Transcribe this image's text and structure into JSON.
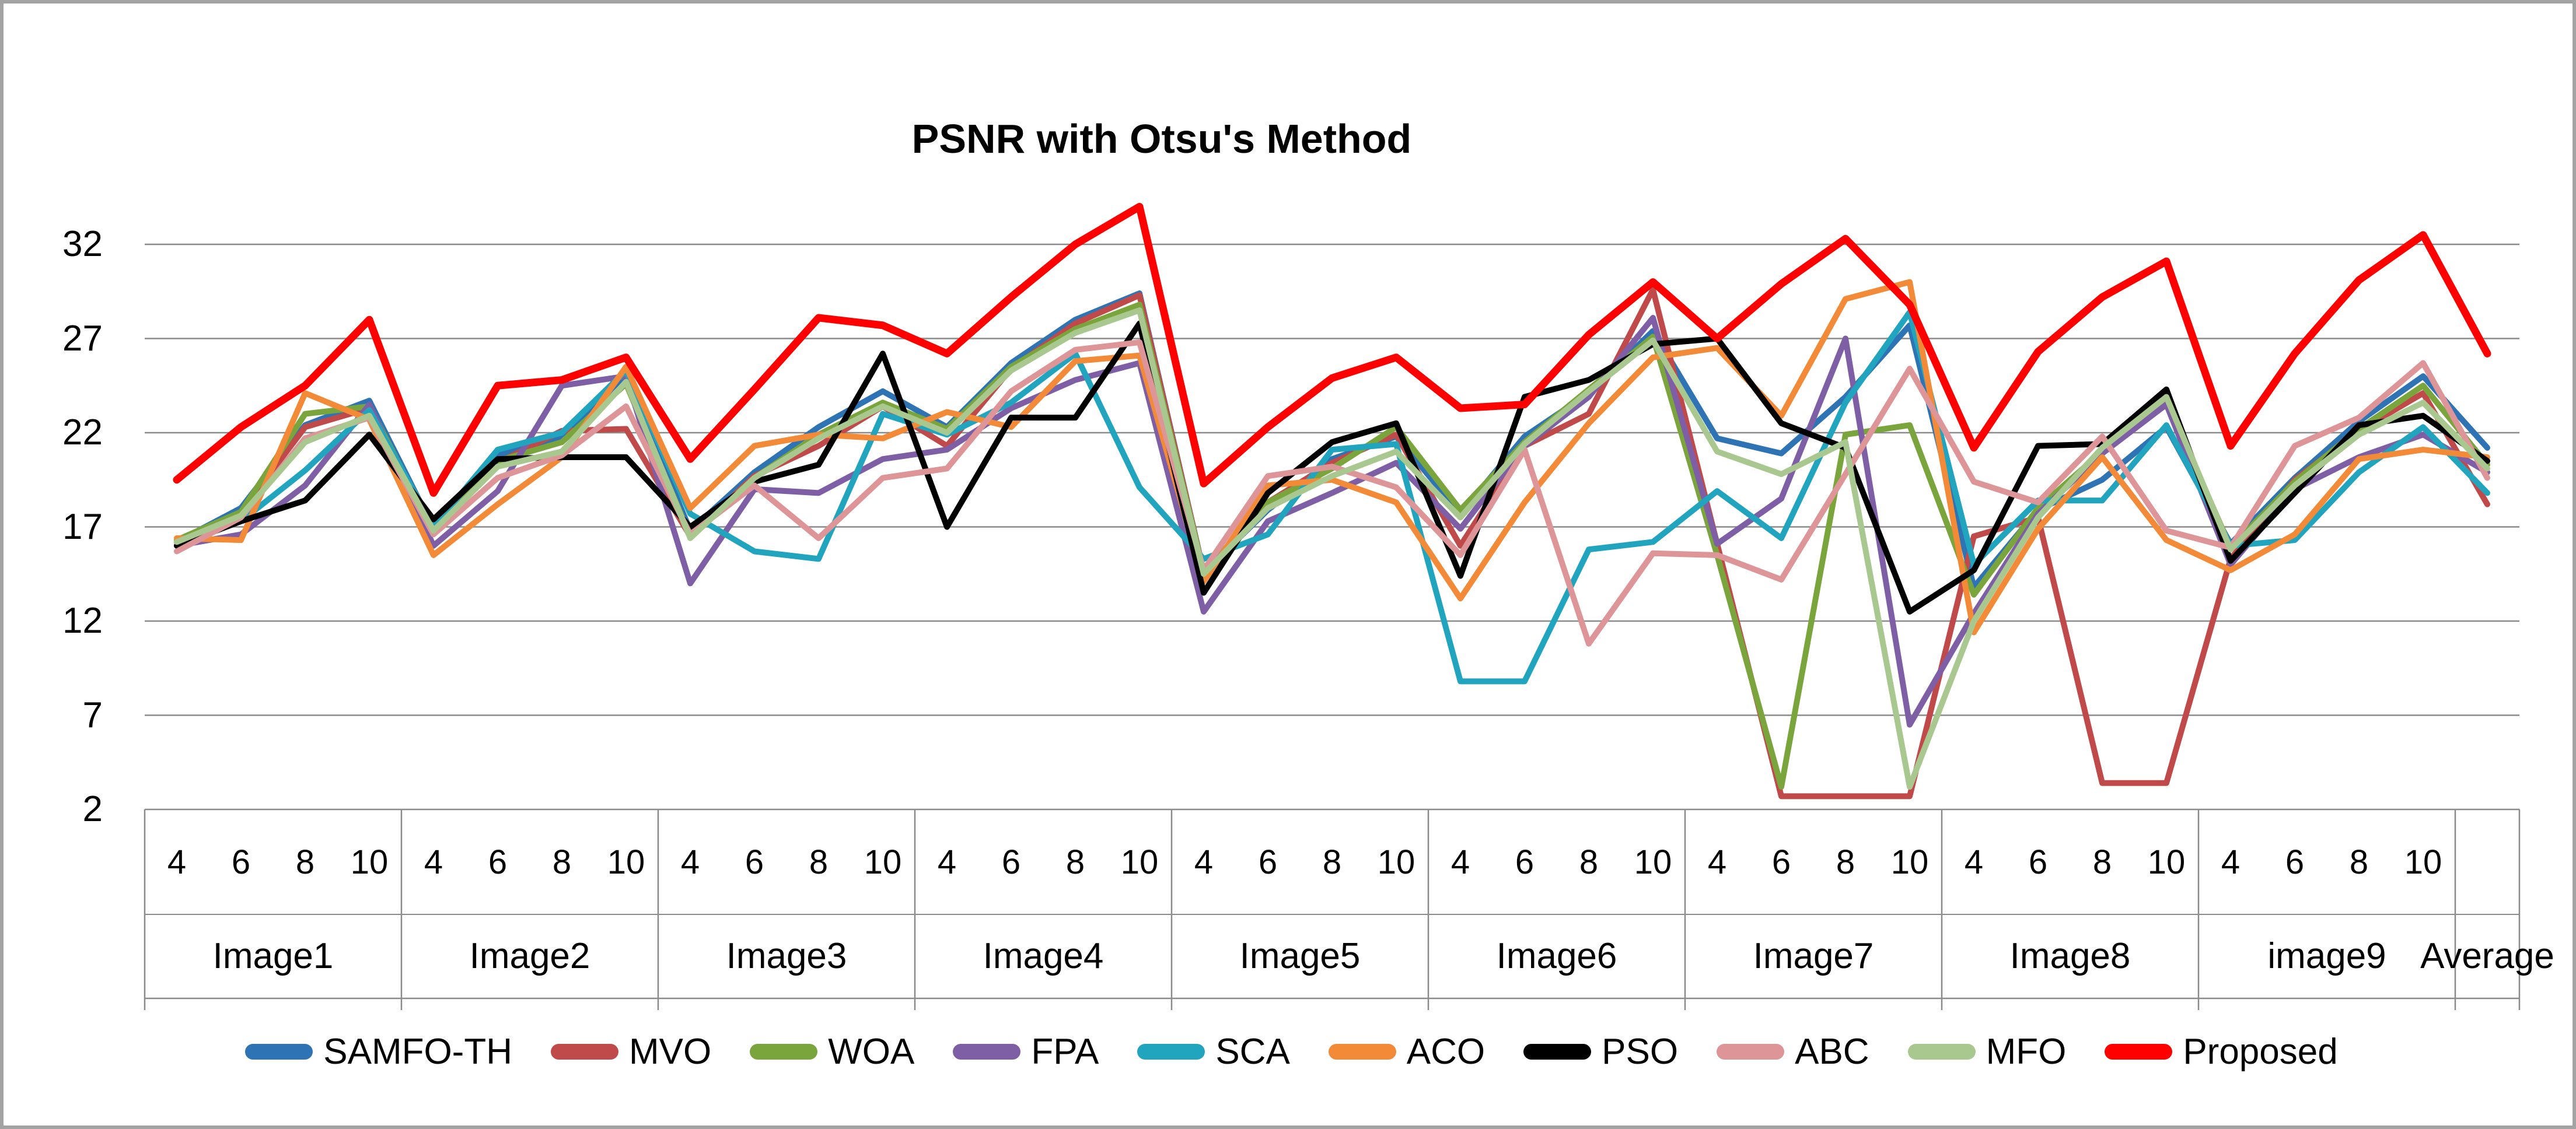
{
  "title": "PSNR with Otsu's Method",
  "chart_data": {
    "type": "line",
    "title": "PSNR with Otsu's Method",
    "xlabel": "",
    "ylabel": "",
    "ylim": [
      2,
      35
    ],
    "grid": true,
    "legend_position": "bottom",
    "y_ticks": [
      32,
      27,
      22,
      17,
      12,
      7,
      2
    ],
    "groups": [
      {
        "label": "Image1",
        "ticks": [
          "4",
          "6",
          "8",
          "10"
        ]
      },
      {
        "label": "Image2",
        "ticks": [
          "4",
          "6",
          "8",
          "10"
        ]
      },
      {
        "label": "Image3",
        "ticks": [
          "4",
          "6",
          "8",
          "10"
        ]
      },
      {
        "label": "Image4",
        "ticks": [
          "4",
          "6",
          "8",
          "10"
        ]
      },
      {
        "label": "Image5",
        "ticks": [
          "4",
          "6",
          "8",
          "10"
        ]
      },
      {
        "label": "Image6",
        "ticks": [
          "4",
          "6",
          "8",
          "10"
        ]
      },
      {
        "label": "Image7",
        "ticks": [
          "4",
          "6",
          "8",
          "10"
        ]
      },
      {
        "label": "Image8",
        "ticks": [
          "4",
          "6",
          "8",
          "10"
        ]
      },
      {
        "label": "image9",
        "ticks": [
          "4",
          "6",
          "8",
          "10"
        ]
      },
      {
        "label": "Average",
        "ticks": []
      }
    ],
    "series": [
      {
        "name": "SAMFO-TH",
        "color": "#2E74B5",
        "values": [
          16.2,
          18,
          22.4,
          23.7,
          16.9,
          20.8,
          21.7,
          25.1,
          16.8,
          19.9,
          22.3,
          24.2,
          22.3,
          25.7,
          28,
          29.4,
          14.6,
          17.9,
          20.6,
          21.8,
          17.7,
          21.8,
          24.1,
          27.4,
          21.7,
          20.9,
          23.9,
          27.7,
          13.8,
          17.9,
          19.5,
          22.3,
          16.1,
          19.6,
          22.6,
          25,
          21.2
        ]
      },
      {
        "name": "MVO",
        "color": "#C04A4A",
        "values": [
          16.2,
          17.8,
          22.3,
          23.3,
          16.9,
          20.4,
          22.1,
          22.2,
          16.5,
          19.7,
          21.3,
          23.4,
          21.3,
          25.4,
          27.8,
          29.3,
          14.6,
          18.3,
          20.4,
          21.9,
          16,
          21.3,
          23,
          29.6,
          16.1,
          2.7,
          2.7,
          2.7,
          16.5,
          17.5,
          3.4,
          3.4,
          15.3,
          19.5,
          22.1,
          24.1,
          18.2
        ]
      },
      {
        "name": "WOA",
        "color": "#7AA53C",
        "values": [
          16.3,
          17.8,
          23,
          23.4,
          16.8,
          20.5,
          21.5,
          24.6,
          16.5,
          19.6,
          21.9,
          23.6,
          22.2,
          25.5,
          27.5,
          28.8,
          14.6,
          18.3,
          20.1,
          22.3,
          17.9,
          21.5,
          24.3,
          27.1,
          15.5,
          3.2,
          21.9,
          22.4,
          13.4,
          18,
          21,
          23.7,
          15.9,
          19.4,
          22.2,
          24.5,
          20.3
        ]
      },
      {
        "name": "FPA",
        "color": "#7E5FA5",
        "values": [
          16,
          16.6,
          19.2,
          23.5,
          16,
          18.9,
          24.5,
          25,
          14,
          19,
          18.8,
          20.6,
          21.1,
          23.3,
          24.8,
          25.7,
          12.5,
          17.3,
          18.8,
          20.4,
          16.9,
          21.3,
          23.9,
          28.1,
          16.1,
          18.5,
          27,
          6.5,
          12.4,
          17.7,
          20.9,
          23.5,
          15,
          19,
          20.7,
          21.9,
          19.9
        ]
      },
      {
        "name": "SCA",
        "color": "#21A5BF",
        "values": [
          16.2,
          17.3,
          20,
          23.2,
          17,
          21.1,
          22,
          25.3,
          17.7,
          15.7,
          15.3,
          23,
          21.9,
          23.6,
          26.2,
          19.1,
          15.3,
          16.6,
          21.1,
          21.4,
          8.8,
          8.8,
          15.8,
          16.2,
          18.9,
          16.4,
          23.6,
          28.4,
          15,
          18.4,
          18.4,
          22.4,
          16,
          16.3,
          19.9,
          22.3,
          18.8
        ]
      },
      {
        "name": "ACO",
        "color": "#F28A38",
        "values": [
          16.4,
          16.3,
          24.1,
          22.7,
          15.5,
          18.2,
          20.7,
          25.5,
          18,
          21.3,
          21.9,
          21.7,
          23.1,
          22.3,
          25.8,
          26.1,
          14.1,
          19.2,
          19.5,
          18.3,
          13.2,
          18.3,
          22.5,
          26,
          26.5,
          22.9,
          29.1,
          30,
          11.4,
          16.9,
          20.7,
          16.3,
          14.7,
          16.6,
          20.6,
          21.1,
          20.7
        ]
      },
      {
        "name": "PSO",
        "color": "#000000",
        "values": [
          16,
          17.3,
          18.4,
          21.9,
          17.4,
          20.6,
          20.7,
          20.7,
          17,
          19.4,
          20.3,
          26.2,
          17,
          22.8,
          22.8,
          27.8,
          13.5,
          18.8,
          21.5,
          22.5,
          14.4,
          23.9,
          24.8,
          26.7,
          27,
          22.5,
          21.2,
          12.5,
          14.7,
          21.3,
          21.4,
          24.3,
          15.2,
          18.8,
          22.4,
          22.9,
          20.5
        ]
      },
      {
        "name": "ABC",
        "color": "#DE9598",
        "values": [
          15.7,
          17.5,
          21.7,
          22.8,
          16.6,
          19.6,
          20.8,
          23.4,
          16.6,
          19.2,
          16.4,
          19.6,
          20.1,
          24.2,
          26.4,
          26.8,
          14.7,
          19.7,
          20.2,
          19.1,
          15.5,
          21.1,
          10.8,
          15.6,
          15.5,
          14.2,
          19.8,
          25.4,
          19.4,
          18.3,
          21.8,
          16.8,
          15.9,
          21.3,
          22.8,
          25.7,
          19.6
        ]
      },
      {
        "name": "MFO",
        "color": "#A9C890",
        "values": [
          16.2,
          17.6,
          21.5,
          22.9,
          16.8,
          20.2,
          21,
          24.7,
          16.4,
          19.6,
          21.7,
          23.4,
          22,
          25.3,
          27.3,
          28.5,
          14.5,
          18,
          19.7,
          21,
          17.5,
          21.4,
          24.2,
          26.9,
          21,
          19.8,
          21.5,
          3.2,
          12,
          17.5,
          21.2,
          23.9,
          15.8,
          19.2,
          21.9,
          23.6,
          20.1
        ]
      },
      {
        "name": "Proposed",
        "color": "#FE0000",
        "values": [
          19.5,
          22.3,
          24.5,
          28,
          18.8,
          24.5,
          24.8,
          26,
          20.6,
          24.3,
          28.1,
          27.7,
          26.2,
          29.2,
          32,
          34,
          19.3,
          22.3,
          24.9,
          26,
          23.3,
          23.5,
          27.2,
          30,
          27,
          29.9,
          32.3,
          28.8,
          21.2,
          26.3,
          29.2,
          31.1,
          21.3,
          26.2,
          30.1,
          32.5,
          26.2
        ]
      }
    ]
  }
}
